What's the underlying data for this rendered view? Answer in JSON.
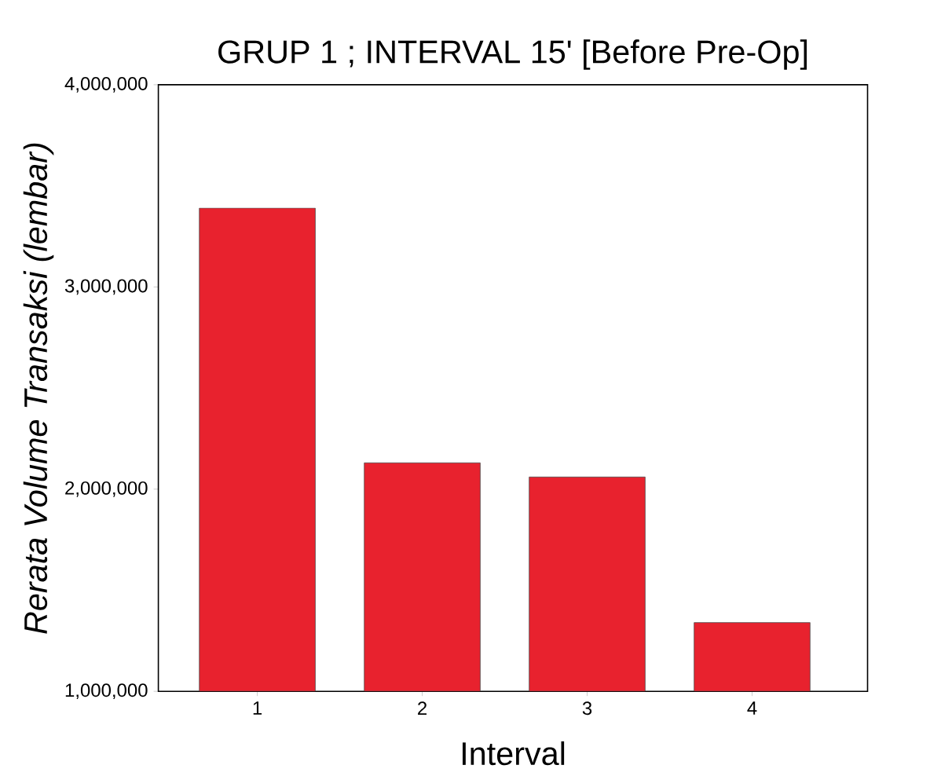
{
  "chart_data": {
    "type": "bar",
    "title": "GRUP 1 ; INTERVAL 15' [Before Pre-Op]",
    "xlabel": "Interval",
    "ylabel": "Rerata Volume Transaksi (lembar)",
    "categories": [
      "1",
      "2",
      "3",
      "4"
    ],
    "values": [
      3390000,
      2130000,
      2060000,
      1340000
    ],
    "color": "#e8222e",
    "ylim": [
      1000000,
      4000000
    ],
    "yticks": [
      {
        "value": 1000000,
        "label": "1,000,000"
      },
      {
        "value": 2000000,
        "label": "2,000,000"
      },
      {
        "value": 3000000,
        "label": "3,000,000"
      },
      {
        "value": 4000000,
        "label": "4,000,000"
      }
    ]
  }
}
